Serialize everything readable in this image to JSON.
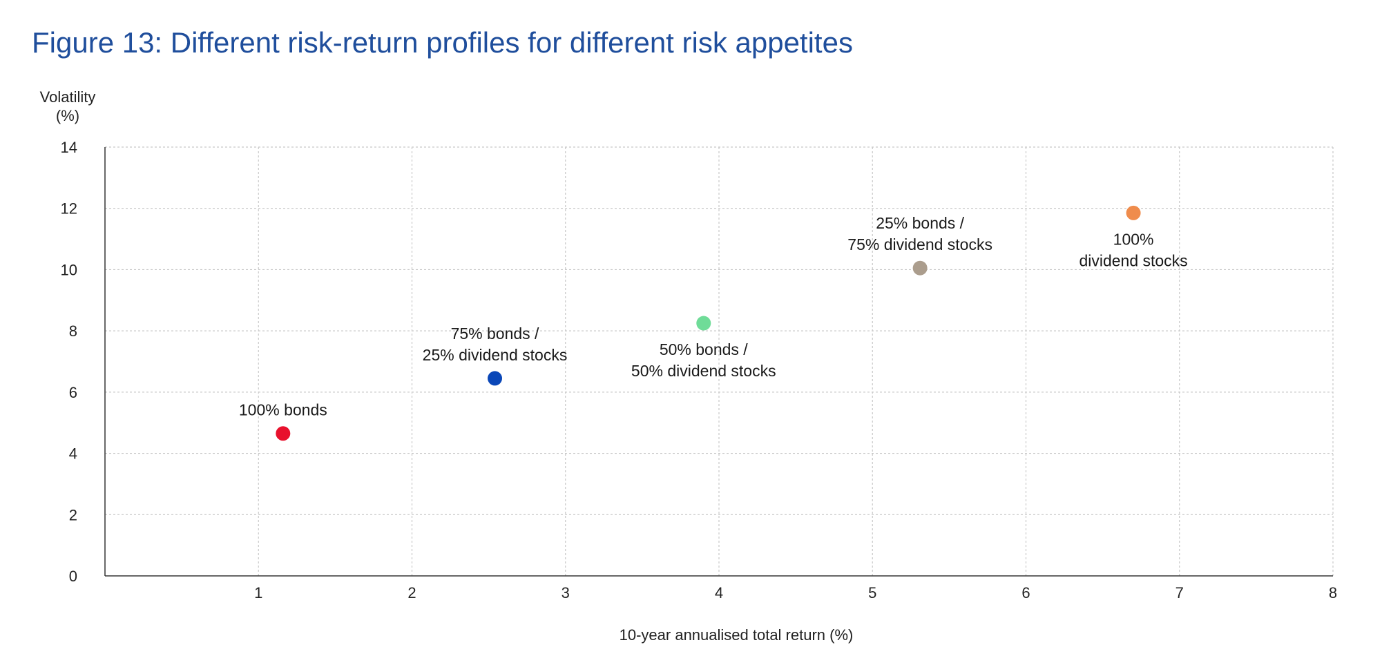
{
  "colors": {
    "title": "#1f4e9c",
    "axis": "#333333",
    "grid": "#c8c8c8"
  },
  "chart_data": {
    "type": "scatter",
    "title": "Figure 13: Different risk-return profiles for different risk appetites",
    "xlabel": "10-year annualised total return (%)",
    "ylabel": [
      "Volatility",
      "(%)"
    ],
    "xlim": [
      0,
      8
    ],
    "ylim": [
      0,
      14
    ],
    "x_ticks": [
      1,
      2,
      3,
      4,
      5,
      6,
      7,
      8
    ],
    "y_ticks": [
      0,
      2,
      4,
      6,
      8,
      10,
      12,
      14
    ],
    "grid": true,
    "legend": "none",
    "points": [
      {
        "label": [
          "100% bonds"
        ],
        "x": 1.16,
        "y": 4.65,
        "color": "#e8112d",
        "label_position": "above"
      },
      {
        "label": [
          "75% bonds /",
          "25% dividend stocks"
        ],
        "x": 2.54,
        "y": 6.45,
        "color": "#0a47b8",
        "label_position": "above"
      },
      {
        "label": [
          "50% bonds /",
          "50% dividend stocks"
        ],
        "x": 3.9,
        "y": 8.25,
        "color": "#6fdc98",
        "label_position": "below"
      },
      {
        "label": [
          "25% bonds /",
          "75% dividend stocks"
        ],
        "x": 5.31,
        "y": 10.05,
        "color": "#ab9d8d",
        "label_position": "above"
      },
      {
        "label": [
          "100%",
          "dividend stocks"
        ],
        "x": 6.7,
        "y": 11.85,
        "color": "#ef8c4c",
        "label_position": "below"
      }
    ]
  }
}
